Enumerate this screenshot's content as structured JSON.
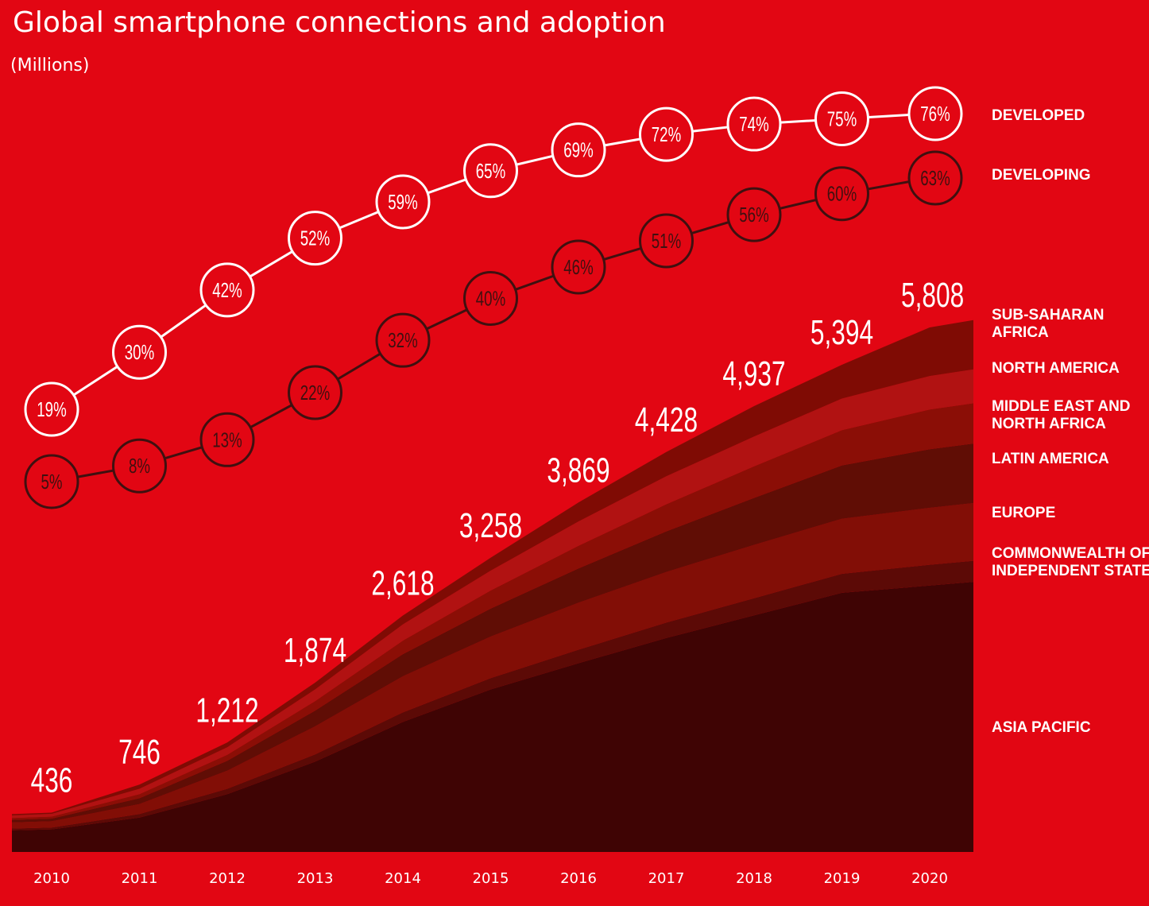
{
  "chart_data": {
    "type": "area",
    "title": "Global smartphone connections and adoption",
    "subtitle": "(Millions)",
    "categories": [
      "2010",
      "2011",
      "2012",
      "2013",
      "2014",
      "2015",
      "2016",
      "2017",
      "2018",
      "2019",
      "2020"
    ],
    "totals": [
      436,
      746,
      1212,
      1874,
      2618,
      3258,
      3869,
      4428,
      4937,
      5394,
      5808
    ],
    "total_labels": [
      "436",
      "746",
      "1,212",
      "1,874",
      "2,618",
      "3,258",
      "3,869",
      "4,428",
      "4,937",
      "5,394",
      "5,808"
    ],
    "series": [
      {
        "name": "ASIA PACIFIC",
        "color": "#3f0404",
        "values": [
          250,
          380,
          640,
          1000,
          1440,
          1800,
          2090,
          2370,
          2620,
          2870,
          2950
        ]
      },
      {
        "name": "COMMONWEALTH OF INDEPENDENT STATES",
        "color": "#5c0a06",
        "values": [
          20,
          40,
          60,
          80,
          105,
          125,
          150,
          170,
          190,
          210,
          230
        ]
      },
      {
        "name": "EUROPE",
        "color": "#820e06",
        "values": [
          70,
          110,
          200,
          310,
          400,
          460,
          520,
          560,
          590,
          610,
          630
        ]
      },
      {
        "name": "LATIN AMERICA",
        "color": "#600d05",
        "values": [
          30,
          65,
          110,
          175,
          245,
          310,
          380,
          450,
          520,
          590,
          650
        ]
      },
      {
        "name": "MIDDLE EAST AND NORTH AFRICA",
        "color": "#8b0e06",
        "values": [
          22,
          45,
          65,
          105,
          150,
          200,
          250,
          300,
          350,
          390,
          440
        ]
      },
      {
        "name": "NORTH AMERICA",
        "color": "#b11212",
        "values": [
          30,
          60,
          85,
          130,
          180,
          220,
          270,
          310,
          330,
          350,
          370
        ]
      },
      {
        "name": "SUB-SAHARAN AFRICA",
        "color": "#7f0b04",
        "values": [
          14,
          46,
          52,
          74,
          98,
          143,
          209,
          268,
          337,
          374,
          538
        ]
      }
    ],
    "adoption": [
      {
        "name": "DEVELOPED",
        "values": [
          19,
          30,
          42,
          52,
          59,
          65,
          69,
          72,
          74,
          75,
          76
        ],
        "labels": [
          "19%",
          "30%",
          "42%",
          "52%",
          "59%",
          "65%",
          "69%",
          "72%",
          "74%",
          "75%",
          "76%"
        ]
      },
      {
        "name": "DEVELOPING",
        "values": [
          5,
          8,
          13,
          22,
          32,
          40,
          46,
          51,
          56,
          60,
          63
        ],
        "labels": [
          "5%",
          "8%",
          "13%",
          "22%",
          "32%",
          "40%",
          "46%",
          "51%",
          "56%",
          "60%",
          "63%"
        ]
      }
    ],
    "ylim": [
      0,
      6500
    ],
    "grid": false,
    "legend": "right"
  }
}
